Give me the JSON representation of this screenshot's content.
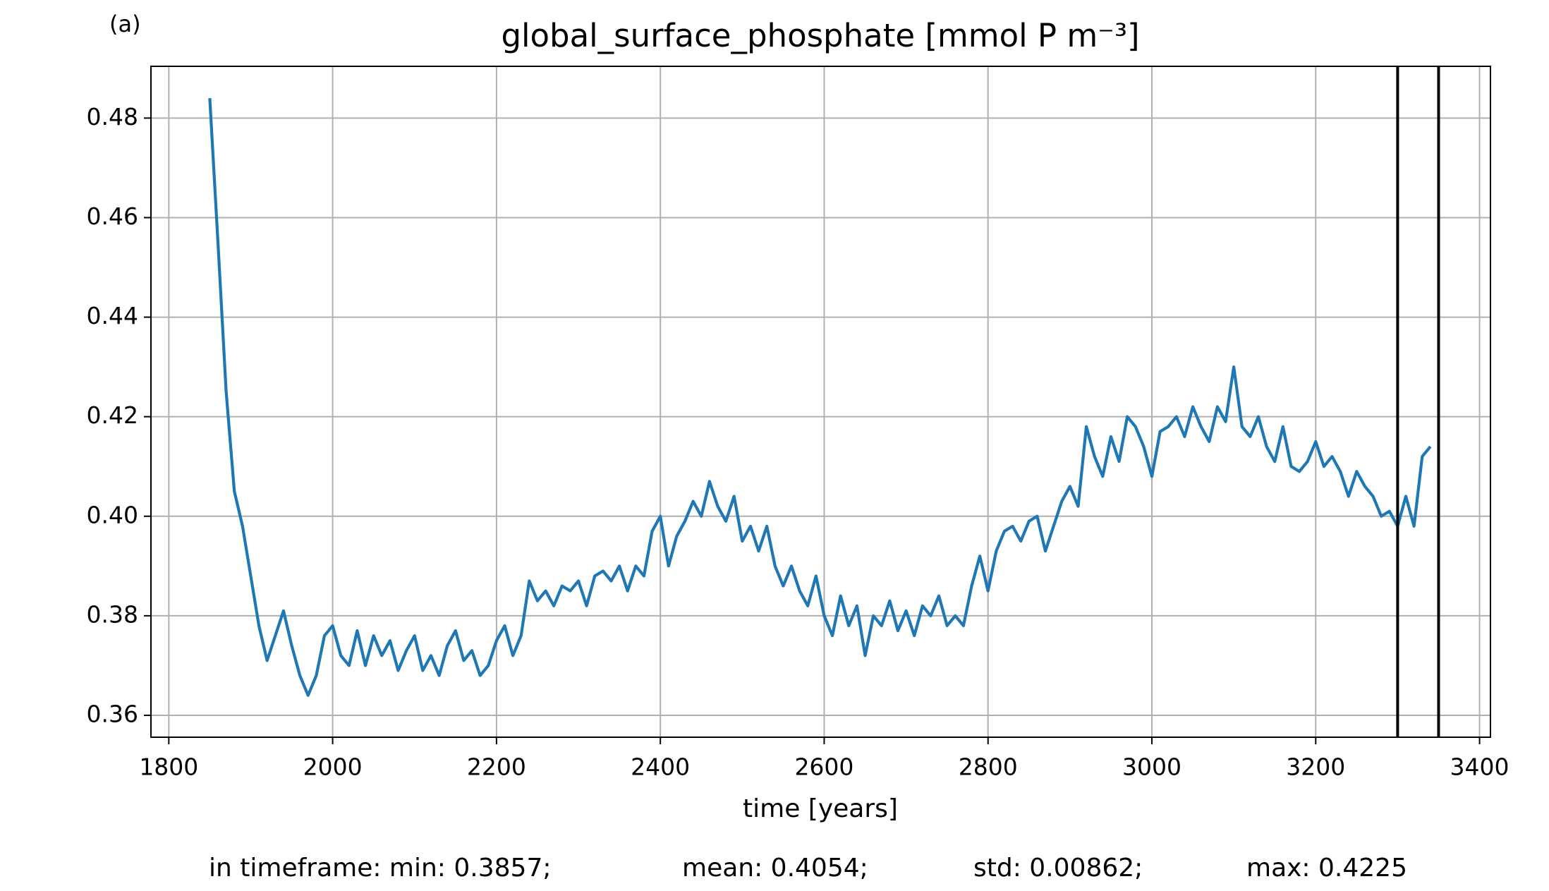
{
  "chart_data": {
    "type": "line",
    "panel_label": "(a)",
    "title": "global_surface_phosphate [mmol P m⁻³]",
    "x_label": "time [years]",
    "footer": [
      "in timeframe: min: 0.3857;",
      "mean: 0.4054;",
      "std: 0.00862;",
      "max: 0.4225"
    ],
    "xlim": [
      1778.2,
      3413.3
    ],
    "ylim": [
      0.3556,
      0.4904
    ],
    "xticks": [
      1800,
      2000,
      2200,
      2400,
      2600,
      2800,
      3000,
      3200,
      3400
    ],
    "yticks": [
      0.36,
      0.38,
      {
        "value": 0.4,
        "label": "0.40"
      },
      0.42,
      0.44,
      0.46,
      0.48
    ],
    "grid": true,
    "vlines": [
      3300,
      3350
    ],
    "vline_color": "#000000",
    "x": [
      1850,
      1860,
      1870,
      1880,
      1890,
      1900,
      1910,
      1920,
      1930,
      1940,
      1950,
      1960,
      1970,
      1980,
      1990,
      2000,
      2010,
      2020,
      2030,
      2040,
      2050,
      2060,
      2070,
      2080,
      2090,
      2100,
      2110,
      2120,
      2130,
      2140,
      2150,
      2160,
      2170,
      2180,
      2190,
      2200,
      2210,
      2220,
      2230,
      2240,
      2250,
      2260,
      2270,
      2280,
      2290,
      2300,
      2310,
      2320,
      2330,
      2340,
      2350,
      2360,
      2370,
      2380,
      2390,
      2400,
      2410,
      2420,
      2430,
      2440,
      2450,
      2460,
      2470,
      2480,
      2490,
      2500,
      2510,
      2520,
      2530,
      2540,
      2550,
      2560,
      2570,
      2580,
      2590,
      2600,
      2610,
      2620,
      2630,
      2640,
      2650,
      2660,
      2670,
      2680,
      2690,
      2700,
      2710,
      2720,
      2730,
      2740,
      2750,
      2760,
      2770,
      2780,
      2790,
      2800,
      2810,
      2820,
      2830,
      2840,
      2850,
      2860,
      2870,
      2880,
      2890,
      2900,
      2910,
      2920,
      2930,
      2940,
      2950,
      2960,
      2970,
      2980,
      2990,
      3000,
      3010,
      3020,
      3030,
      3040,
      3050,
      3060,
      3070,
      3080,
      3090,
      3100,
      3110,
      3120,
      3130,
      3140,
      3150,
      3160,
      3170,
      3180,
      3190,
      3200,
      3210,
      3220,
      3230,
      3240,
      3250,
      3260,
      3270,
      3280,
      3290,
      3300,
      3310,
      3320,
      3330,
      3340
    ],
    "series": [
      {
        "color": "#1f77b4",
        "values": [
          0.484,
          0.455,
          0.425,
          0.405,
          0.398,
          0.388,
          0.378,
          0.371,
          0.376,
          0.381,
          0.374,
          0.368,
          0.364,
          0.368,
          0.376,
          0.378,
          0.372,
          0.37,
          0.377,
          0.37,
          0.376,
          0.372,
          0.375,
          0.369,
          0.373,
          0.376,
          0.369,
          0.372,
          0.368,
          0.374,
          0.377,
          0.371,
          0.373,
          0.368,
          0.37,
          0.375,
          0.378,
          0.372,
          0.376,
          0.387,
          0.383,
          0.385,
          0.382,
          0.386,
          0.385,
          0.387,
          0.382,
          0.388,
          0.389,
          0.387,
          0.39,
          0.385,
          0.39,
          0.388,
          0.397,
          0.4,
          0.39,
          0.396,
          0.399,
          0.403,
          0.4,
          0.407,
          0.402,
          0.399,
          0.404,
          0.395,
          0.398,
          0.393,
          0.398,
          0.39,
          0.386,
          0.39,
          0.385,
          0.382,
          0.388,
          0.38,
          0.376,
          0.384,
          0.378,
          0.382,
          0.372,
          0.38,
          0.378,
          0.383,
          0.377,
          0.381,
          0.376,
          0.382,
          0.38,
          0.384,
          0.378,
          0.38,
          0.378,
          0.386,
          0.392,
          0.385,
          0.393,
          0.397,
          0.398,
          0.395,
          0.399,
          0.4,
          0.393,
          0.398,
          0.403,
          0.406,
          0.402,
          0.418,
          0.412,
          0.408,
          0.416,
          0.411,
          0.42,
          0.418,
          0.414,
          0.408,
          0.417,
          0.418,
          0.42,
          0.416,
          0.422,
          0.418,
          0.415,
          0.422,
          0.419,
          0.43,
          0.418,
          0.416,
          0.42,
          0.414,
          0.411,
          0.418,
          0.41,
          0.409,
          0.411,
          0.415,
          0.41,
          0.412,
          0.409,
          0.404,
          0.409,
          0.406,
          0.404,
          0.4,
          0.401,
          0.398,
          0.404,
          0.398,
          0.412,
          0.414
        ]
      }
    ]
  }
}
